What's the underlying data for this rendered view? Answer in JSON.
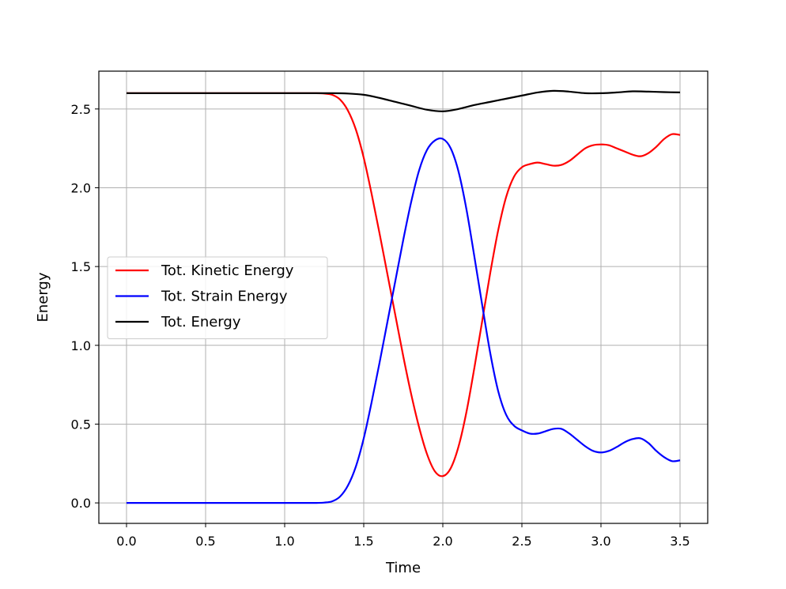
{
  "chart_data": {
    "type": "line",
    "title": "",
    "xlabel": "Time",
    "ylabel": "Energy",
    "xlim": [
      -0.175,
      3.675
    ],
    "ylim": [
      -0.13,
      2.74
    ],
    "xticks": [
      0.0,
      0.5,
      1.0,
      1.5,
      2.0,
      2.5,
      3.0,
      3.5
    ],
    "xtick_labels": [
      "0.0",
      "0.5",
      "1.0",
      "1.5",
      "2.0",
      "2.5",
      "3.0",
      "3.5"
    ],
    "yticks": [
      0.0,
      0.5,
      1.0,
      1.5,
      2.0,
      2.5
    ],
    "ytick_labels": [
      "0.0",
      "0.5",
      "1.0",
      "1.5",
      "2.0",
      "2.5"
    ],
    "grid": true,
    "legend_position": "center-left",
    "series": [
      {
        "name": "Tot. Kinetic Energy",
        "color": "#ff0000",
        "points": [
          [
            0.0,
            2.6
          ],
          [
            0.5,
            2.6
          ],
          [
            1.0,
            2.6
          ],
          [
            1.2,
            2.6
          ],
          [
            1.25,
            2.598
          ],
          [
            1.3,
            2.59
          ],
          [
            1.35,
            2.56
          ],
          [
            1.4,
            2.49
          ],
          [
            1.45,
            2.37
          ],
          [
            1.5,
            2.19
          ],
          [
            1.55,
            1.96
          ],
          [
            1.6,
            1.71
          ],
          [
            1.65,
            1.45
          ],
          [
            1.7,
            1.19
          ],
          [
            1.75,
            0.93
          ],
          [
            1.8,
            0.69
          ],
          [
            1.85,
            0.48
          ],
          [
            1.9,
            0.31
          ],
          [
            1.95,
            0.2
          ],
          [
            2.0,
            0.17
          ],
          [
            2.05,
            0.22
          ],
          [
            2.1,
            0.36
          ],
          [
            2.15,
            0.58
          ],
          [
            2.2,
            0.86
          ],
          [
            2.25,
            1.16
          ],
          [
            2.3,
            1.46
          ],
          [
            2.35,
            1.73
          ],
          [
            2.4,
            1.94
          ],
          [
            2.45,
            2.07
          ],
          [
            2.5,
            2.13
          ],
          [
            2.55,
            2.15
          ],
          [
            2.6,
            2.16
          ],
          [
            2.65,
            2.15
          ],
          [
            2.7,
            2.14
          ],
          [
            2.75,
            2.145
          ],
          [
            2.8,
            2.17
          ],
          [
            2.85,
            2.21
          ],
          [
            2.9,
            2.25
          ],
          [
            2.95,
            2.27
          ],
          [
            3.0,
            2.275
          ],
          [
            3.05,
            2.27
          ],
          [
            3.1,
            2.25
          ],
          [
            3.15,
            2.23
          ],
          [
            3.2,
            2.21
          ],
          [
            3.25,
            2.2
          ],
          [
            3.3,
            2.22
          ],
          [
            3.35,
            2.26
          ],
          [
            3.4,
            2.31
          ],
          [
            3.45,
            2.34
          ],
          [
            3.5,
            2.335
          ]
        ]
      },
      {
        "name": "Tot. Strain Energy",
        "color": "#0000ff",
        "points": [
          [
            0.0,
            0.0
          ],
          [
            0.5,
            0.0
          ],
          [
            1.0,
            0.0
          ],
          [
            1.2,
            0.0
          ],
          [
            1.25,
            0.002
          ],
          [
            1.3,
            0.01
          ],
          [
            1.35,
            0.04
          ],
          [
            1.4,
            0.11
          ],
          [
            1.45,
            0.23
          ],
          [
            1.5,
            0.41
          ],
          [
            1.55,
            0.64
          ],
          [
            1.6,
            0.89
          ],
          [
            1.65,
            1.15
          ],
          [
            1.7,
            1.41
          ],
          [
            1.75,
            1.67
          ],
          [
            1.8,
            1.91
          ],
          [
            1.85,
            2.11
          ],
          [
            1.9,
            2.24
          ],
          [
            1.95,
            2.3
          ],
          [
            2.0,
            2.31
          ],
          [
            2.05,
            2.25
          ],
          [
            2.1,
            2.1
          ],
          [
            2.15,
            1.86
          ],
          [
            2.2,
            1.56
          ],
          [
            2.25,
            1.25
          ],
          [
            2.3,
            0.95
          ],
          [
            2.35,
            0.71
          ],
          [
            2.4,
            0.56
          ],
          [
            2.45,
            0.49
          ],
          [
            2.5,
            0.46
          ],
          [
            2.55,
            0.44
          ],
          [
            2.6,
            0.44
          ],
          [
            2.65,
            0.455
          ],
          [
            2.7,
            0.47
          ],
          [
            2.75,
            0.47
          ],
          [
            2.8,
            0.44
          ],
          [
            2.85,
            0.4
          ],
          [
            2.9,
            0.36
          ],
          [
            2.95,
            0.33
          ],
          [
            3.0,
            0.32
          ],
          [
            3.05,
            0.33
          ],
          [
            3.1,
            0.355
          ],
          [
            3.15,
            0.385
          ],
          [
            3.2,
            0.405
          ],
          [
            3.25,
            0.41
          ],
          [
            3.3,
            0.38
          ],
          [
            3.35,
            0.33
          ],
          [
            3.4,
            0.29
          ],
          [
            3.45,
            0.265
          ],
          [
            3.5,
            0.27
          ]
        ]
      },
      {
        "name": "Tot. Energy",
        "color": "#000000",
        "points": [
          [
            0.0,
            2.6
          ],
          [
            0.5,
            2.6
          ],
          [
            1.0,
            2.6
          ],
          [
            1.3,
            2.6
          ],
          [
            1.4,
            2.598
          ],
          [
            1.5,
            2.59
          ],
          [
            1.6,
            2.57
          ],
          [
            1.7,
            2.545
          ],
          [
            1.8,
            2.52
          ],
          [
            1.9,
            2.495
          ],
          [
            2.0,
            2.485
          ],
          [
            2.1,
            2.5
          ],
          [
            2.2,
            2.525
          ],
          [
            2.3,
            2.545
          ],
          [
            2.4,
            2.565
          ],
          [
            2.5,
            2.585
          ],
          [
            2.6,
            2.605
          ],
          [
            2.7,
            2.615
          ],
          [
            2.8,
            2.61
          ],
          [
            2.9,
            2.6
          ],
          [
            3.0,
            2.6
          ],
          [
            3.1,
            2.605
          ],
          [
            3.2,
            2.612
          ],
          [
            3.3,
            2.61
          ],
          [
            3.4,
            2.607
          ],
          [
            3.5,
            2.605
          ]
        ]
      }
    ]
  }
}
